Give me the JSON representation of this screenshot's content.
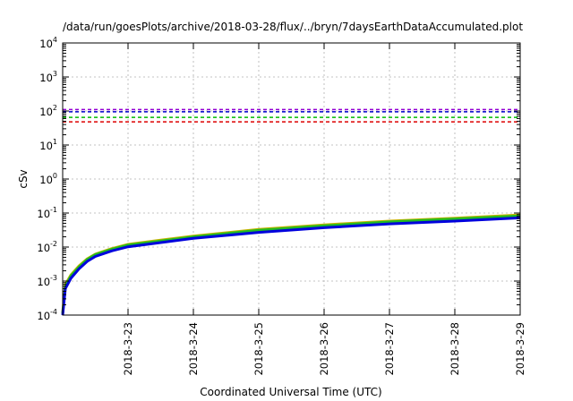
{
  "chart_data": {
    "type": "line",
    "title": "/data/run/goesPlots/archive/2018-03-28/flux/../bryn/7daysEarthDataAccumulated.plot",
    "xlabel": "Coordinated Universal Time (UTC)",
    "ylabel": "cSv",
    "y_scale": "log",
    "xlim": [
      "2018-03-22",
      "2018-03-29"
    ],
    "ylim": [
      0.0001,
      10000
    ],
    "grid": true,
    "x_ticks": [
      "2018-3-23",
      "2018-3-24",
      "2018-3-25",
      "2018-3-26",
      "2018-3-27",
      "2018-3-28",
      "2018-3-29"
    ],
    "y_ticks": [
      {
        "base": "10",
        "exp": "-4",
        "value": 0.0001
      },
      {
        "base": "10",
        "exp": "-3",
        "value": 0.001
      },
      {
        "base": "10",
        "exp": "-2",
        "value": 0.01
      },
      {
        "base": "10",
        "exp": "-1",
        "value": 0.1
      },
      {
        "base": "10",
        "exp": "0",
        "value": 1
      },
      {
        "base": "10",
        "exp": "1",
        "value": 10
      },
      {
        "base": "10",
        "exp": "2",
        "value": 100
      },
      {
        "base": "10",
        "exp": "3",
        "value": 1000
      },
      {
        "base": "10",
        "exp": "4",
        "value": 10000
      }
    ],
    "thresholds": [
      {
        "value": 110,
        "color": "#9400d3"
      },
      {
        "value": 95,
        "color": "#0000cc"
      },
      {
        "value": 65,
        "color": "#00bb00"
      },
      {
        "value": 48,
        "color": "#dd0000"
      }
    ],
    "series": [
      {
        "color": "#c8b400",
        "x": [
          "2018-03-22T00:00",
          "2018-03-22T01:00",
          "2018-03-22T03:00",
          "2018-03-22T06:00",
          "2018-03-22T09:00",
          "2018-03-22T12:00",
          "2018-03-22T18:00",
          "2018-03-23T00:00",
          "2018-03-23T12:00",
          "2018-03-24T00:00",
          "2018-03-25T00:00",
          "2018-03-26T00:00",
          "2018-03-27T00:00",
          "2018-03-28T00:00",
          "2018-03-29T00:00"
        ],
        "values": [
          0.00012,
          0.0008,
          0.0015,
          0.0028,
          0.0045,
          0.0062,
          0.009,
          0.012,
          0.016,
          0.021,
          0.033,
          0.045,
          0.058,
          0.071,
          0.088
        ]
      },
      {
        "color": "#22bb22",
        "x": [
          "2018-03-22T00:00",
          "2018-03-22T01:00",
          "2018-03-22T03:00",
          "2018-03-22T06:00",
          "2018-03-22T09:00",
          "2018-03-22T12:00",
          "2018-03-22T18:00",
          "2018-03-23T00:00",
          "2018-03-23T12:00",
          "2018-03-24T00:00",
          "2018-03-25T00:00",
          "2018-03-26T00:00",
          "2018-03-27T00:00",
          "2018-03-28T00:00",
          "2018-03-29T00:00"
        ],
        "values": [
          0.00011,
          0.0007,
          0.0014,
          0.0026,
          0.0043,
          0.006,
          0.0086,
          0.0115,
          0.015,
          0.02,
          0.031,
          0.042,
          0.055,
          0.067,
          0.082
        ]
      },
      {
        "color": "#0000dd",
        "x": [
          "2018-03-22T00:00",
          "2018-03-22T01:00",
          "2018-03-22T03:00",
          "2018-03-22T06:00",
          "2018-03-22T09:00",
          "2018-03-22T12:00",
          "2018-03-22T18:00",
          "2018-03-23T00:00",
          "2018-03-23T12:00",
          "2018-03-24T00:00",
          "2018-03-25T00:00",
          "2018-03-26T00:00",
          "2018-03-27T00:00",
          "2018-03-28T00:00",
          "2018-03-29T00:00"
        ],
        "values": [
          0.0001,
          0.0006,
          0.0012,
          0.0023,
          0.0038,
          0.0053,
          0.0077,
          0.0102,
          0.0135,
          0.018,
          0.027,
          0.037,
          0.048,
          0.058,
          0.072
        ]
      }
    ]
  }
}
